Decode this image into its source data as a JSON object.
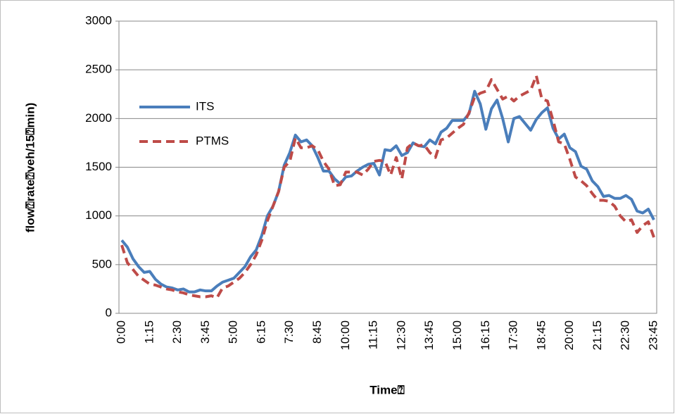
{
  "chart_data": {
    "type": "line",
    "xlabel": "Time⍰",
    "ylabel": "flow⍰rate⍰veh/15⍰min)",
    "categories": [
      "0:00",
      null,
      null,
      null,
      null,
      "1:15",
      null,
      null,
      null,
      null,
      "2:30",
      null,
      null,
      null,
      null,
      "3:45",
      null,
      null,
      null,
      null,
      "5:00",
      null,
      null,
      null,
      null,
      "6:15",
      null,
      null,
      null,
      null,
      "7:30",
      null,
      null,
      null,
      null,
      "8:45",
      null,
      null,
      null,
      null,
      "10:00",
      null,
      null,
      null,
      null,
      "11:15",
      null,
      null,
      null,
      null,
      "12:30",
      null,
      null,
      null,
      null,
      "13:45",
      null,
      null,
      null,
      null,
      "15:00",
      null,
      null,
      null,
      null,
      "16:15",
      null,
      null,
      null,
      null,
      "17:30",
      null,
      null,
      null,
      null,
      "18:45",
      null,
      null,
      null,
      null,
      "20:00",
      null,
      null,
      null,
      null,
      "21:15",
      null,
      null,
      null,
      null,
      "22:30",
      null,
      null,
      null,
      null,
      "23:45"
    ],
    "series": [
      {
        "name": "ITS",
        "color": "#4a7ebb",
        "dash": false,
        "values": [
          750,
          680,
          560,
          480,
          420,
          430,
          350,
          300,
          270,
          260,
          240,
          250,
          220,
          220,
          240,
          230,
          230,
          280,
          320,
          340,
          360,
          420,
          480,
          580,
          650,
          800,
          1000,
          1100,
          1250,
          1520,
          1650,
          1830,
          1760,
          1780,
          1720,
          1600,
          1460,
          1460,
          1380,
          1330,
          1400,
          1410,
          1460,
          1500,
          1530,
          1540,
          1420,
          1680,
          1670,
          1720,
          1620,
          1650,
          1750,
          1720,
          1710,
          1780,
          1740,
          1860,
          1900,
          1980,
          1980,
          1980,
          2050,
          2280,
          2150,
          1890,
          2100,
          2190,
          2000,
          1760,
          2000,
          2020,
          1950,
          1880,
          1990,
          2060,
          2110,
          1900,
          1790,
          1840,
          1700,
          1660,
          1510,
          1480,
          1360,
          1300,
          1200,
          1210,
          1180,
          1180,
          1210,
          1170,
          1050,
          1030,
          1070,
          960
        ]
      },
      {
        "name": "PTMS",
        "color": "#be4b48",
        "dash": true,
        "values": [
          700,
          520,
          450,
          380,
          340,
          300,
          290,
          270,
          250,
          240,
          220,
          210,
          190,
          180,
          170,
          170,
          180,
          160,
          260,
          280,
          320,
          360,
          420,
          500,
          600,
          750,
          950,
          1100,
          1250,
          1500,
          1560,
          1800,
          1700,
          1700,
          1720,
          1680,
          1560,
          1480,
          1310,
          1320,
          1450,
          1450,
          1450,
          1420,
          1480,
          1560,
          1570,
          1560,
          1420,
          1600,
          1380,
          1700,
          1750,
          1720,
          1730,
          1650,
          1600,
          1780,
          1800,
          1850,
          1900,
          1940,
          2060,
          2220,
          2260,
          2280,
          2400,
          2300,
          2200,
          2230,
          2180,
          2230,
          2260,
          2290,
          2440,
          2200,
          2180,
          1980,
          1760,
          1740,
          1580,
          1400,
          1360,
          1310,
          1230,
          1160,
          1160,
          1150,
          1100,
          1000,
          940,
          960,
          830,
          900,
          940,
          780
        ]
      }
    ],
    "ylim": [
      0,
      3000
    ],
    "yticks": [
      0,
      500,
      1000,
      1500,
      2000,
      2500,
      3000
    ],
    "grid": true,
    "legend": "upper left"
  }
}
